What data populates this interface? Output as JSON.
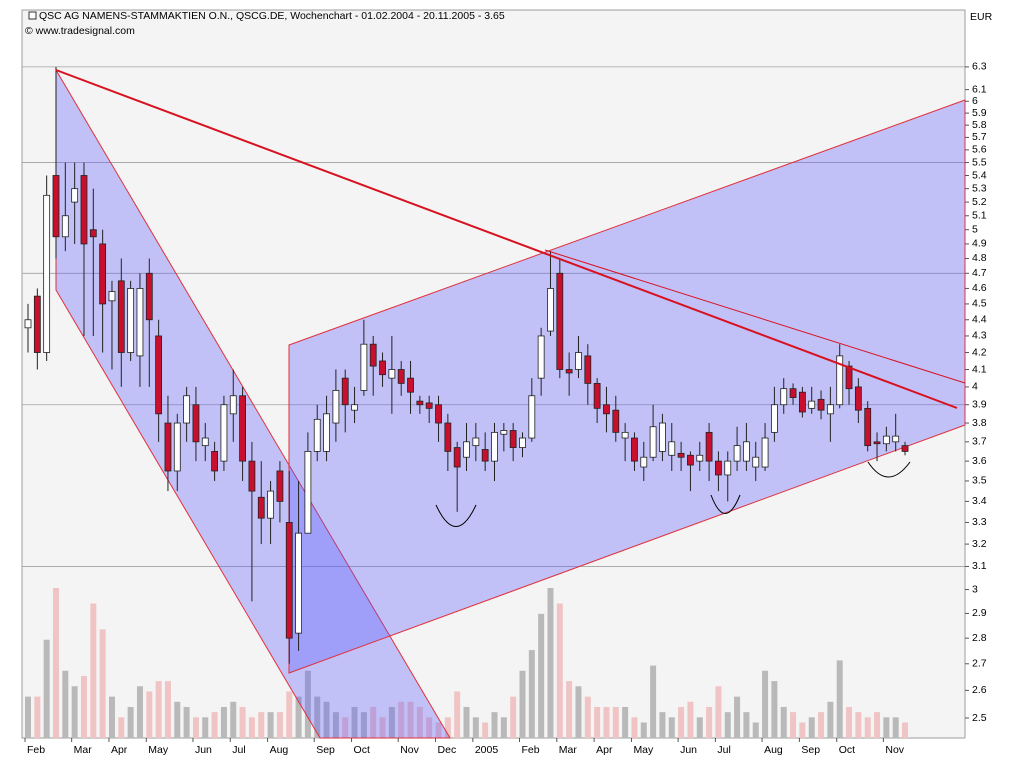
{
  "chart_data": {
    "type": "candlestick",
    "title": "QSC AG NAMENS-STAMMAKTIEN O.N., QSCG.DE, Wochenchart - 01.02.2004 - 20.11.2005 - 3.65",
    "source": "© www.tradesignal.com",
    "unit": "EUR",
    "categories": [
      "Feb",
      null,
      null,
      null,
      null,
      "Mar",
      null,
      null,
      null,
      "Apr",
      null,
      null,
      null,
      "May",
      null,
      null,
      null,
      null,
      "Jun",
      null,
      null,
      null,
      "Jul",
      null,
      null,
      null,
      "Aug",
      null,
      null,
      null,
      null,
      "Sep",
      null,
      null,
      null,
      "Oct",
      null,
      null,
      null,
      null,
      "Nov",
      null,
      null,
      null,
      "Dec",
      null,
      null,
      null,
      "2005",
      null,
      null,
      null,
      null,
      "Feb",
      null,
      null,
      null,
      "Mar",
      null,
      null,
      null,
      "Apr",
      null,
      null,
      null,
      "May",
      null,
      null,
      null,
      null,
      "Jun",
      null,
      null,
      null,
      "Jul",
      null,
      null,
      null,
      null,
      "Aug",
      null,
      null,
      null,
      "Sep",
      null,
      null,
      null,
      "Oct",
      null,
      null,
      null,
      null,
      "Nov",
      null,
      null
    ],
    "open": [
      4.35,
      4.55,
      4.2,
      5.4,
      4.95,
      5.2,
      5.4,
      5.0,
      4.9,
      4.52,
      4.65,
      4.2,
      4.18,
      4.7,
      4.3,
      3.8,
      3.55,
      3.8,
      3.9,
      3.68,
      3.65,
      3.6,
      3.85,
      3.95,
      3.6,
      3.42,
      3.32,
      3.55,
      3.3,
      2.82,
      3.25,
      3.65,
      3.65,
      3.8,
      4.05,
      3.87,
      3.98,
      4.25,
      4.15,
      4.05,
      4.1,
      4.05,
      3.92,
      3.91,
      3.9,
      3.8,
      3.67,
      3.62,
      3.68,
      3.66,
      3.6,
      3.74,
      3.76,
      3.67,
      3.72,
      4.05,
      4.33,
      4.7,
      4.1,
      4.1,
      4.18,
      4.02,
      3.9,
      3.87,
      3.72,
      3.72,
      3.57,
      3.62,
      3.65,
      3.63,
      3.64,
      3.63,
      3.6,
      3.75,
      3.6,
      3.53,
      3.6,
      3.6,
      3.57,
      3.57,
      3.75,
      3.9,
      3.99,
      3.97,
      3.88,
      3.93,
      3.85,
      3.9,
      4.12,
      4.0,
      3.88,
      3.7,
      3.69,
      3.7,
      3.68
    ],
    "high": [
      4.5,
      4.6,
      5.4,
      6.3,
      5.5,
      5.5,
      5.5,
      5.3,
      5.0,
      4.65,
      4.8,
      4.65,
      4.7,
      4.8,
      4.4,
      3.95,
      3.85,
      4.0,
      4.0,
      3.8,
      3.7,
      3.95,
      4.1,
      4.0,
      3.7,
      3.6,
      3.5,
      3.6,
      3.55,
      3.5,
      3.75,
      3.9,
      3.95,
      4.1,
      4.1,
      4.0,
      4.4,
      4.3,
      4.2,
      4.3,
      4.15,
      4.15,
      3.95,
      3.95,
      3.95,
      3.85,
      3.7,
      3.8,
      3.8,
      3.75,
      3.8,
      3.8,
      3.8,
      3.75,
      4.05,
      4.35,
      4.85,
      4.8,
      4.2,
      4.3,
      4.25,
      4.05,
      4.0,
      3.95,
      3.8,
      3.75,
      3.7,
      3.9,
      3.85,
      3.8,
      3.7,
      3.65,
      3.7,
      3.8,
      3.65,
      3.65,
      3.78,
      3.8,
      3.7,
      3.8,
      4.0,
      4.05,
      4.02,
      4.0,
      4.0,
      3.98,
      4.0,
      4.25,
      4.15,
      4.05,
      3.92,
      3.75,
      3.78,
      3.85,
      3.7
    ],
    "low": [
      4.2,
      4.1,
      4.15,
      4.8,
      4.85,
      4.9,
      4.3,
      4.3,
      4.2,
      4.1,
      4.0,
      4.15,
      4.0,
      4.0,
      3.7,
      3.45,
      3.45,
      3.7,
      3.6,
      3.6,
      3.5,
      3.55,
      3.7,
      3.5,
      2.95,
      3.2,
      3.2,
      3.3,
      2.7,
      2.75,
      3.25,
      3.6,
      3.6,
      3.7,
      3.75,
      3.8,
      3.95,
      3.95,
      4.0,
      3.85,
      3.95,
      3.85,
      3.85,
      3.8,
      3.7,
      3.55,
      3.35,
      3.55,
      3.6,
      3.55,
      3.5,
      3.65,
      3.6,
      3.62,
      3.7,
      3.95,
      4.3,
      4.05,
      3.95,
      4.05,
      3.9,
      3.8,
      3.75,
      3.7,
      3.6,
      3.55,
      3.5,
      3.6,
      3.6,
      3.55,
      3.55,
      3.45,
      3.55,
      3.5,
      3.45,
      3.4,
      3.55,
      3.55,
      3.5,
      3.55,
      3.7,
      3.85,
      3.9,
      3.83,
      3.85,
      3.82,
      3.7,
      3.88,
      3.9,
      3.8,
      3.65,
      3.6,
      3.65,
      3.65,
      3.63
    ],
    "close": [
      4.4,
      4.2,
      5.25,
      4.95,
      5.1,
      5.3,
      4.9,
      4.95,
      4.5,
      4.58,
      4.2,
      4.6,
      4.6,
      4.4,
      3.85,
      3.55,
      3.8,
      3.95,
      3.7,
      3.72,
      3.55,
      3.9,
      3.95,
      3.6,
      3.45,
      3.32,
      3.45,
      3.4,
      2.8,
      3.25,
      3.65,
      3.82,
      3.85,
      3.98,
      3.9,
      3.9,
      4.25,
      4.12,
      4.07,
      4.1,
      4.02,
      3.97,
      3.9,
      3.88,
      3.8,
      3.65,
      3.57,
      3.7,
      3.72,
      3.6,
      3.75,
      3.76,
      3.67,
      3.72,
      3.95,
      4.3,
      4.6,
      4.1,
      4.08,
      4.2,
      4.02,
      3.88,
      3.85,
      3.75,
      3.75,
      3.6,
      3.62,
      3.78,
      3.8,
      3.7,
      3.62,
      3.58,
      3.63,
      3.6,
      3.53,
      3.6,
      3.68,
      3.7,
      3.62,
      3.72,
      3.9,
      3.99,
      3.94,
      3.86,
      3.92,
      3.87,
      3.9,
      4.18,
      3.99,
      3.87,
      3.68,
      3.69,
      3.73,
      3.73,
      3.65
    ],
    "volume": [
      40,
      40,
      95,
      145,
      65,
      50,
      60,
      130,
      105,
      40,
      20,
      30,
      50,
      45,
      55,
      55,
      35,
      30,
      20,
      20,
      25,
      30,
      35,
      30,
      20,
      25,
      25,
      25,
      45,
      40,
      65,
      40,
      35,
      25,
      20,
      30,
      25,
      30,
      20,
      30,
      35,
      35,
      30,
      20,
      15,
      20,
      45,
      30,
      20,
      15,
      25,
      20,
      40,
      65,
      85,
      120,
      145,
      130,
      55,
      50,
      40,
      30,
      30,
      30,
      30,
      20,
      15,
      70,
      25,
      20,
      30,
      35,
      20,
      30,
      50,
      25,
      40,
      25,
      15,
      65,
      55,
      30,
      25,
      15,
      20,
      25,
      35,
      75,
      30,
      25,
      20,
      25,
      20,
      20,
      15
    ],
    "up_color": "#ffffff",
    "down_color": "#c8102e",
    "volume_up_color": "#b9b9b9",
    "volume_down_color": "#f0c4c4",
    "log_scale": true,
    "ylim": [
      2.43,
      6.83
    ],
    "yticks": [
      2.5,
      2.6,
      2.7,
      2.8,
      2.9,
      3,
      3.1,
      3.2,
      3.3,
      3.4,
      3.5,
      3.6,
      3.7,
      3.8,
      3.9,
      4,
      4.1,
      4.2,
      4.3,
      4.4,
      4.5,
      4.6,
      4.7,
      4.8,
      4.9,
      5,
      5.1,
      5.2,
      5.3,
      5.4,
      5.5,
      5.6,
      5.7,
      5.8,
      5.9,
      6,
      6.1,
      6.3
    ],
    "grid_lines": [
      3.1,
      3.9,
      4.7,
      5.5,
      6.3
    ]
  }
}
